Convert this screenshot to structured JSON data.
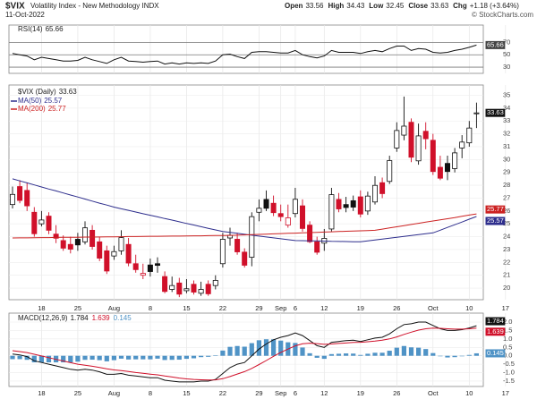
{
  "header": {
    "symbol": "$VIX",
    "name": "Volatility Index - New Methodology  INDX",
    "date": "11-Oct-2022",
    "watermark": "© StockCharts.com",
    "quote": [
      {
        "label": "Open",
        "value": 33.56
      },
      {
        "label": "High",
        "value": 34.43
      },
      {
        "label": "Low",
        "value": 32.45
      },
      {
        "label": "Close",
        "value": 33.63
      },
      {
        "label": "Chg",
        "value": "+1.18 (+3.64%)"
      }
    ]
  },
  "chart_data": [
    {
      "type": "line",
      "ylim": [
        20,
        98
      ],
      "yticks": [
        30,
        50,
        70
      ],
      "grid": true,
      "series": [
        {
          "name": "RSI(14)",
          "color": "#111111",
          "values": [
            52,
            50,
            48,
            42,
            46,
            44,
            42,
            40,
            40,
            41,
            46,
            42,
            39,
            36,
            42,
            46,
            40,
            39,
            38,
            39,
            40,
            35,
            37,
            35,
            37,
            36,
            37,
            36,
            40,
            50,
            51,
            47,
            44,
            54,
            55,
            55,
            54,
            53,
            53,
            57,
            50,
            47,
            45,
            48,
            57,
            54,
            54,
            54,
            52,
            55,
            57,
            55,
            60,
            64,
            64,
            57,
            60,
            59,
            54,
            53,
            54,
            57,
            59,
            62,
            65.66,
            null,
            null,
            null,
            null
          ]
        }
      ]
    },
    {
      "type": "candlestick",
      "name": "$VIX (Daily)",
      "up_color": "#111111",
      "down_color": "#d0102a",
      "ylim": [
        19.1,
        35.8
      ],
      "yticks": [
        20,
        21,
        22,
        23,
        24,
        25,
        26,
        27,
        28,
        29,
        30,
        31,
        32,
        33,
        34,
        35
      ],
      "grid": true,
      "categories": [
        null,
        null,
        null,
        null,
        "18",
        null,
        null,
        null,
        null,
        "25",
        null,
        null,
        null,
        null,
        "Aug",
        null,
        null,
        null,
        null,
        "8",
        null,
        null,
        null,
        null,
        "15",
        null,
        null,
        null,
        null,
        "22",
        null,
        null,
        null,
        null,
        "29",
        null,
        null,
        "Sep",
        null,
        "6",
        null,
        null,
        null,
        "12",
        null,
        null,
        null,
        null,
        "19",
        null,
        null,
        null,
        null,
        "26",
        null,
        null,
        null,
        null,
        "Oct",
        null,
        null,
        null,
        null,
        "10",
        null,
        null,
        null,
        null,
        "17"
      ],
      "open": [
        26.5,
        27.9,
        27.6,
        25.9,
        25.0,
        25.6,
        24.2,
        23.7,
        23.4,
        23.8,
        23.6,
        24.5,
        23.6,
        22.9,
        22.5,
        22.9,
        23.4,
        21.9,
        21.0,
        21.8,
        21.9,
        20.9,
        19.9,
        20.4,
        19.8,
        20.3,
        19.6,
        20.3,
        20.2,
        21.9,
        23.9,
        23.8,
        22.8,
        22.4,
        25.9,
        26.9,
        26.6,
        25.8,
        24.9,
        25.8,
        26.4,
        24.9,
        23.6,
        23.5,
        24.6,
        26.9,
        26.5,
        26.8,
        27.1,
        26.0,
        26.7,
        28.2,
        28.3,
        30.9,
        31.9,
        32.9,
        29.9,
        32.2,
        31.5,
        29.4,
        29.7,
        29.3,
        30.9,
        31.3,
        33.56,
        null,
        null,
        null,
        null
      ],
      "high": [
        27.9,
        28.4,
        28.2,
        26.3,
        26.0,
        25.9,
        24.9,
        24.1,
        24.0,
        24.3,
        25.2,
        24.9,
        24.0,
        23.3,
        23.3,
        24.5,
        23.9,
        22.6,
        21.9,
        22.3,
        22.4,
        21.3,
        20.9,
        20.8,
        20.7,
        20.6,
        20.5,
        20.6,
        21.0,
        24.3,
        24.7,
        24.3,
        23.1,
        25.9,
        26.9,
        27.6,
        27.2,
        26.5,
        26.5,
        27.8,
        26.9,
        25.2,
        24.0,
        24.6,
        27.8,
        27.4,
        27.1,
        27.2,
        27.6,
        27.5,
        28.7,
        28.6,
        30.3,
        32.9,
        34.9,
        33.2,
        32.8,
        32.9,
        32.0,
        30.3,
        30.3,
        30.9,
        31.9,
        33.0,
        34.43,
        null,
        null,
        null,
        null
      ],
      "low": [
        26.2,
        26.6,
        26.0,
        24.0,
        24.8,
        24.2,
        23.5,
        22.9,
        22.7,
        22.9,
        23.4,
        23.0,
        22.1,
        21.1,
        22.2,
        22.6,
        21.7,
        21.2,
        20.7,
        20.9,
        21.2,
        19.6,
        19.7,
        19.3,
        19.6,
        19.5,
        19.4,
        19.4,
        19.9,
        21.6,
        23.3,
        22.6,
        21.6,
        21.7,
        25.2,
        26.0,
        25.6,
        25.2,
        24.7,
        25.5,
        24.4,
        23.5,
        22.6,
        22.9,
        24.4,
        25.9,
        25.9,
        26.0,
        25.5,
        25.7,
        26.5,
        27.0,
        28.1,
        30.6,
        31.5,
        29.8,
        29.6,
        30.8,
        28.8,
        28.4,
        28.4,
        29.0,
        30.1,
        31.0,
        32.45,
        null,
        null,
        null,
        null
      ],
      "close": [
        27.29,
        26.82,
        26.4,
        24.23,
        25.3,
        24.5,
        23.88,
        23.11,
        23.03,
        23.36,
        24.69,
        23.24,
        22.33,
        21.33,
        22.84,
        23.93,
        21.95,
        21.44,
        21.15,
        21.29,
        21.77,
        19.74,
        20.2,
        19.53,
        19.95,
        19.69,
        19.9,
        19.56,
        20.6,
        23.8,
        24.11,
        22.82,
        21.78,
        25.56,
        26.21,
        26.21,
        25.87,
        25.56,
        25.47,
        26.91,
        24.64,
        23.61,
        22.79,
        23.87,
        27.27,
        26.16,
        26.27,
        26.3,
        25.76,
        27.16,
        27.99,
        27.35,
        29.92,
        32.26,
        32.6,
        30.18,
        31.84,
        31.62,
        29.07,
        28.55,
        29.07,
        30.52,
        31.36,
        32.45,
        33.63,
        null,
        null,
        null,
        null
      ],
      "series": [
        {
          "name": "MA(50)",
          "color": "#2d2d8c",
          "values": [
            28.5,
            28.34,
            28.19,
            28.03,
            27.87,
            27.71,
            27.56,
            27.4,
            27.24,
            27.09,
            26.93,
            26.77,
            26.61,
            26.46,
            26.3,
            26.17,
            26.05,
            25.92,
            25.79,
            25.67,
            25.54,
            25.41,
            25.29,
            25.16,
            25.03,
            24.91,
            24.78,
            24.65,
            24.53,
            24.4,
            24.33,
            24.26,
            24.19,
            24.12,
            24.05,
            23.98,
            23.91,
            23.84,
            23.77,
            23.7,
            23.69,
            23.68,
            23.67,
            23.66,
            23.64,
            23.63,
            23.62,
            23.61,
            23.6,
            23.67,
            23.74,
            23.81,
            23.88,
            23.95,
            24.02,
            24.09,
            24.16,
            24.23,
            24.3,
            24.51,
            24.72,
            24.93,
            25.14,
            25.36,
            25.57,
            null,
            null,
            null,
            null
          ]
        },
        {
          "name": "MA(200)",
          "color": "#cc2222",
          "values": [
            23.9,
            23.91,
            23.91,
            23.92,
            23.93,
            23.93,
            23.94,
            23.95,
            23.95,
            23.96,
            23.97,
            23.97,
            23.98,
            23.99,
            23.99,
            24.0,
            24.01,
            24.01,
            24.02,
            24.03,
            24.03,
            24.04,
            24.05,
            24.05,
            24.06,
            24.07,
            24.07,
            24.08,
            24.09,
            24.09,
            24.1,
            24.12,
            24.14,
            24.16,
            24.18,
            24.2,
            24.22,
            24.24,
            24.26,
            24.28,
            24.3,
            24.32,
            24.34,
            24.36,
            24.38,
            24.4,
            24.42,
            24.44,
            24.46,
            24.48,
            24.5,
            24.59,
            24.68,
            24.77,
            24.86,
            24.95,
            25.04,
            25.13,
            25.22,
            25.31,
            25.4,
            25.49,
            25.59,
            25.68,
            25.77,
            null,
            null,
            null,
            null
          ]
        }
      ]
    },
    {
      "type": "macd",
      "name": "MACD(12,26,9)",
      "ylim": [
        -1.82,
        2.53
      ],
      "yticks": [
        {
          "value": 2,
          "label": "2.0"
        },
        1.5,
        {
          "value": 1,
          "label": "1.0"
        },
        0.5,
        {
          "value": 0,
          "label": "0.0"
        },
        -0.5,
        {
          "value": -1,
          "label": "-1.0"
        },
        -1.5
      ],
      "series": [
        {
          "name": "MACD",
          "color": "#111111",
          "values": [
            0.1,
            0.05,
            -0.05,
            -0.3,
            -0.4,
            -0.5,
            -0.6,
            -0.7,
            -0.8,
            -0.85,
            -0.8,
            -0.85,
            -0.95,
            -1.1,
            -1.1,
            -1.05,
            -1.15,
            -1.2,
            -1.25,
            -1.3,
            -1.3,
            -1.45,
            -1.5,
            -1.55,
            -1.55,
            -1.55,
            -1.5,
            -1.5,
            -1.4,
            -1.05,
            -0.7,
            -0.5,
            -0.4,
            0.0,
            0.4,
            0.7,
            0.95,
            1.1,
            1.2,
            1.35,
            1.2,
            0.9,
            0.6,
            0.5,
            0.8,
            0.85,
            0.9,
            0.92,
            0.85,
            0.95,
            1.05,
            1.1,
            1.3,
            1.6,
            1.85,
            1.9,
            2.0,
            2.0,
            1.8,
            1.6,
            1.5,
            1.5,
            1.55,
            1.65,
            1.784,
            null,
            null,
            null,
            null
          ]
        },
        {
          "name": "Signal",
          "color": "#d0102a",
          "values": [
            0.3,
            0.25,
            0.19,
            0.09,
            -0.01,
            -0.11,
            -0.21,
            -0.31,
            -0.41,
            -0.5,
            -0.56,
            -0.62,
            -0.69,
            -0.77,
            -0.84,
            -0.88,
            -0.93,
            -0.99,
            -1.04,
            -1.09,
            -1.13,
            -1.2,
            -1.26,
            -1.32,
            -1.37,
            -1.4,
            -1.42,
            -1.44,
            -1.43,
            -1.36,
            -1.23,
            -1.08,
            -0.94,
            -0.75,
            -0.52,
            -0.28,
            -0.03,
            0.2,
            0.4,
            0.59,
            0.71,
            0.75,
            0.72,
            0.68,
            0.7,
            0.73,
            0.76,
            0.79,
            0.8,
            0.83,
            0.87,
            0.92,
            1.0,
            1.12,
            1.27,
            1.4,
            1.52,
            1.6,
            1.64,
            1.63,
            1.6,
            1.58,
            1.58,
            1.6,
            1.639,
            null,
            null,
            null,
            null
          ]
        },
        {
          "name": "Histogram",
          "color": "#4f93c6",
          "values": [
            -0.2,
            -0.2,
            -0.24,
            -0.39,
            -0.39,
            -0.39,
            -0.39,
            -0.39,
            -0.39,
            -0.35,
            -0.24,
            -0.23,
            -0.26,
            -0.33,
            -0.26,
            -0.17,
            -0.22,
            -0.21,
            -0.21,
            -0.21,
            -0.17,
            -0.25,
            -0.24,
            -0.23,
            -0.18,
            -0.15,
            -0.08,
            -0.06,
            0.03,
            0.31,
            0.53,
            0.58,
            0.54,
            0.75,
            0.92,
            0.98,
            0.98,
            0.9,
            0.8,
            0.76,
            0.49,
            0.15,
            -0.12,
            -0.18,
            0.1,
            0.12,
            0.14,
            0.13,
            0.05,
            0.12,
            0.18,
            0.18,
            0.3,
            0.48,
            0.58,
            0.5,
            0.48,
            0.4,
            0.16,
            -0.03,
            -0.1,
            -0.08,
            -0.03,
            0.05,
            0.145,
            null,
            null,
            null,
            null
          ]
        }
      ]
    }
  ]
}
